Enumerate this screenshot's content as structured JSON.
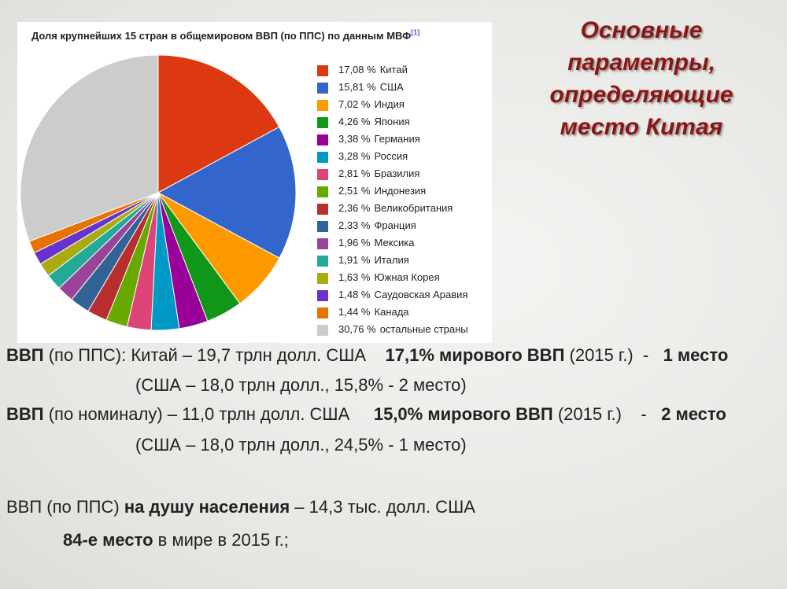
{
  "chart_data": {
    "type": "pie",
    "title": "Доля крупнейших 15 стран в общемировом ВВП (по ППС) по данным МВФ",
    "title_note": "[1]",
    "categories": [
      "Китай",
      "США",
      "Индия",
      "Япония",
      "Германия",
      "Россия",
      "Бразилия",
      "Индонезия",
      "Великобритания",
      "Франция",
      "Мексика",
      "Италия",
      "Южная Корея",
      "Саудовская Аравия",
      "Канада",
      "остальные страны"
    ],
    "values": [
      17.08,
      15.81,
      7.02,
      4.26,
      3.38,
      3.28,
      2.81,
      2.51,
      2.36,
      2.33,
      1.96,
      1.91,
      1.63,
      1.48,
      1.44,
      30.76
    ],
    "value_labels": [
      "17,08 %",
      "15,81 %",
      "7,02 %",
      "4,26 %",
      "3,38 %",
      "3,28 %",
      "2,81 %",
      "2,51 %",
      "2,36 %",
      "2,33 %",
      "1,96 %",
      "1,91 %",
      "1,63 %",
      "1,48 %",
      "1,44 %",
      "30,76 %"
    ],
    "colors": [
      "#dc3912",
      "#3366cc",
      "#ff9900",
      "#109618",
      "#990099",
      "#0099c6",
      "#dd4477",
      "#66aa00",
      "#b82e2e",
      "#316395",
      "#994499",
      "#22aa99",
      "#aaaa11",
      "#6633cc",
      "#e67300",
      "#cccccc"
    ]
  },
  "heading": {
    "lines": [
      "Основные",
      "параметры,",
      "определяющие",
      "место Китая"
    ]
  },
  "text": {
    "lines": [
      {
        "segments": [
          {
            "text": "ВВП",
            "bold": true
          },
          {
            "text": " (по ППС): Китай – 19,7 трлн долл. США    ",
            "bold": false
          },
          {
            "text": "17,1% мирового ВВП",
            "bold": true
          },
          {
            "text": " (2015 г.)  -   ",
            "bold": false
          },
          {
            "text": "1 место",
            "bold": true
          }
        ]
      },
      {
        "segments": [
          {
            "text": "(США – 18,0 трлн долл., 15,8% - 2 место)",
            "bold": false
          }
        ]
      },
      {
        "segments": [
          {
            "text": "ВВП",
            "bold": true
          },
          {
            "text": " (по номиналу) – 11,0 трлн долл. США     ",
            "bold": false
          },
          {
            "text": "15,0% мирового ВВП",
            "bold": true
          },
          {
            "text": " (2015 г.)    -   ",
            "bold": false
          },
          {
            "text": "2 место",
            "bold": true
          }
        ]
      },
      {
        "segments": [
          {
            "text": "(США – 18,0 трлн долл., 24,5% - 1 место)",
            "bold": false
          }
        ]
      },
      {
        "segments": [
          {
            "text": "ВВП",
            "bold": false
          },
          {
            "text": " (по ППС) ",
            "bold": false
          },
          {
            "text": "на душу населения",
            "bold": true
          },
          {
            "text": " – 14,3 тыс. долл. США",
            "bold": false
          }
        ]
      },
      {
        "segments": [
          {
            "text": "84-е место",
            "bold": true
          },
          {
            "text": " в мире в 2015 г.;",
            "bold": false
          }
        ]
      }
    ]
  }
}
